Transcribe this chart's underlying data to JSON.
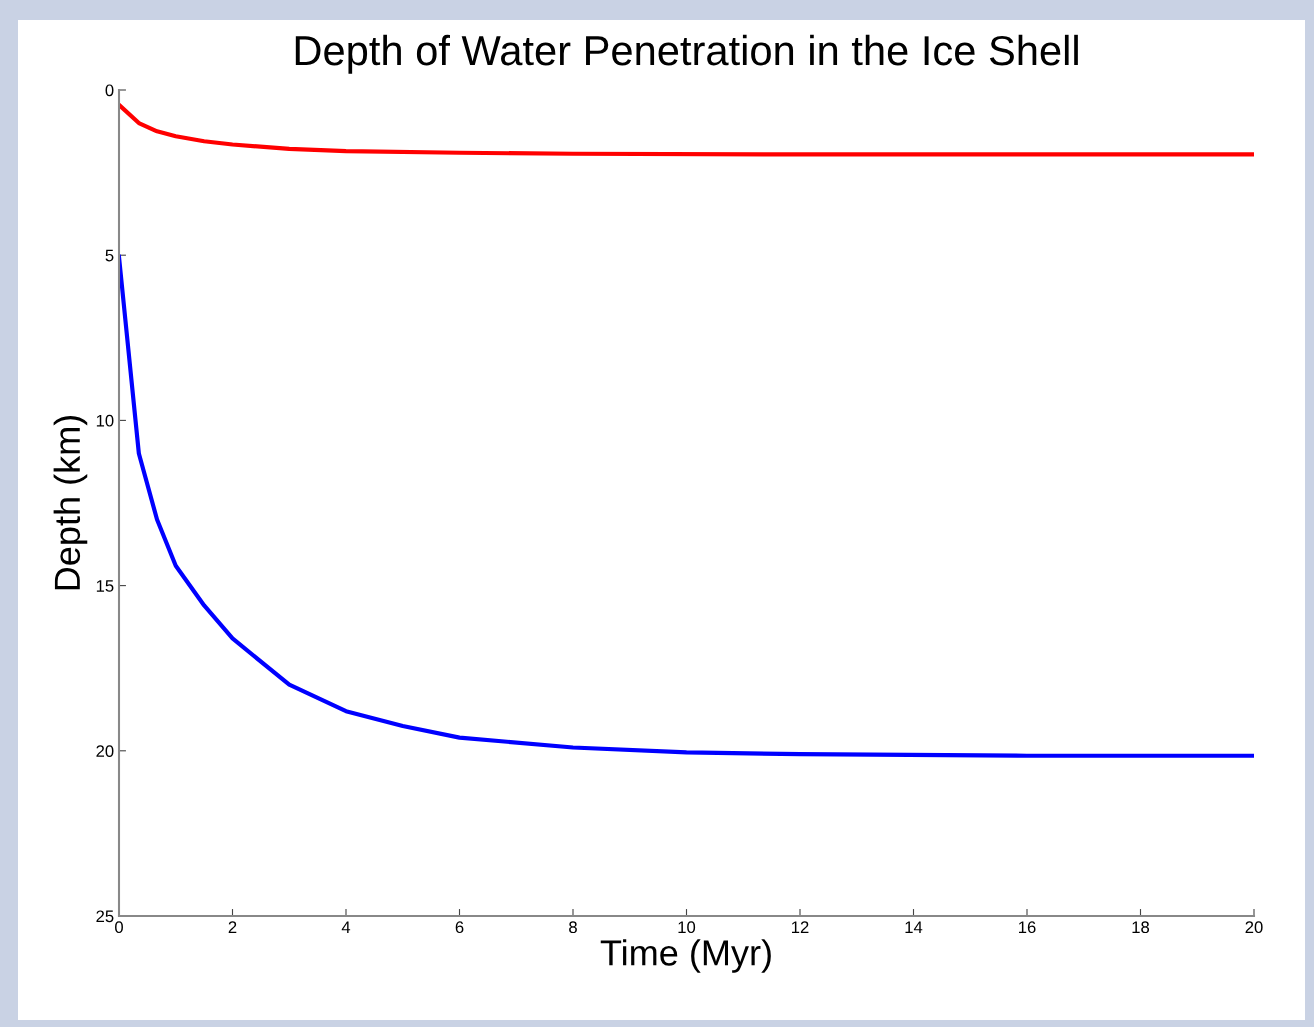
{
  "chart_data": {
    "type": "line",
    "title": "Depth of Water Penetration in the Ice Shell",
    "xlabel": "Time (Myr)",
    "ylabel": "Depth (km)",
    "xlim": [
      0,
      20
    ],
    "xticks": [
      0,
      2,
      4,
      6,
      8,
      10,
      12,
      14,
      16,
      18,
      20
    ],
    "ylim": [
      25,
      0
    ],
    "yticks": [
      0,
      5,
      10,
      15,
      20,
      25
    ],
    "grid": false,
    "marker": "none",
    "line_style": "solid",
    "series": [
      {
        "color": "#ff0000",
        "x": [
          0,
          0.35,
          0.67,
          1,
          1.5,
          2,
          3,
          4,
          6,
          8,
          12,
          20
        ],
        "values": [
          0.45,
          1.0,
          1.25,
          1.4,
          1.55,
          1.65,
          1.78,
          1.85,
          1.9,
          1.93,
          1.95,
          1.95
        ]
      },
      {
        "color": "#0000ff",
        "x": [
          0,
          0.35,
          0.67,
          1,
          1.5,
          2,
          3,
          4,
          5,
          6,
          8,
          10,
          12,
          16,
          20
        ],
        "values": [
          5.05,
          11.0,
          13.0,
          14.4,
          15.6,
          16.6,
          18.0,
          18.8,
          19.25,
          19.6,
          19.9,
          20.05,
          20.1,
          20.15,
          20.15
        ]
      }
    ]
  }
}
